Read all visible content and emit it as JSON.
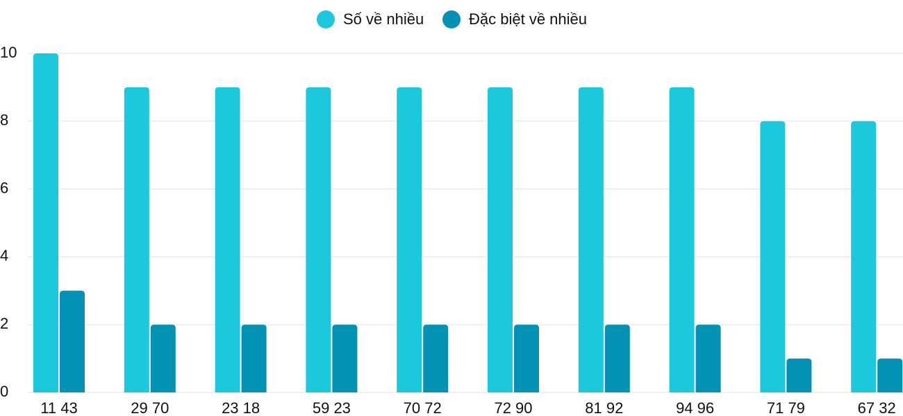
{
  "chart_data": {
    "type": "bar",
    "categories": [
      "11 43",
      "29 70",
      "23 18",
      "59 23",
      "70 72",
      "72 90",
      "81 92",
      "94 96",
      "71 79",
      "67 32"
    ],
    "series": [
      {
        "name": "Số về nhiều",
        "color": "#1bc8dc",
        "values": [
          10,
          9,
          9,
          9,
          9,
          9,
          9,
          9,
          8,
          8
        ]
      },
      {
        "name": "Đặc biệt về nhiều",
        "color": "#0391b4",
        "values": [
          3,
          2,
          2,
          2,
          2,
          2,
          2,
          2,
          1,
          1
        ]
      }
    ],
    "ylim": [
      0,
      10
    ],
    "yticks": [
      0,
      2,
      4,
      6,
      8,
      10
    ],
    "grid": true,
    "legend": "top"
  }
}
